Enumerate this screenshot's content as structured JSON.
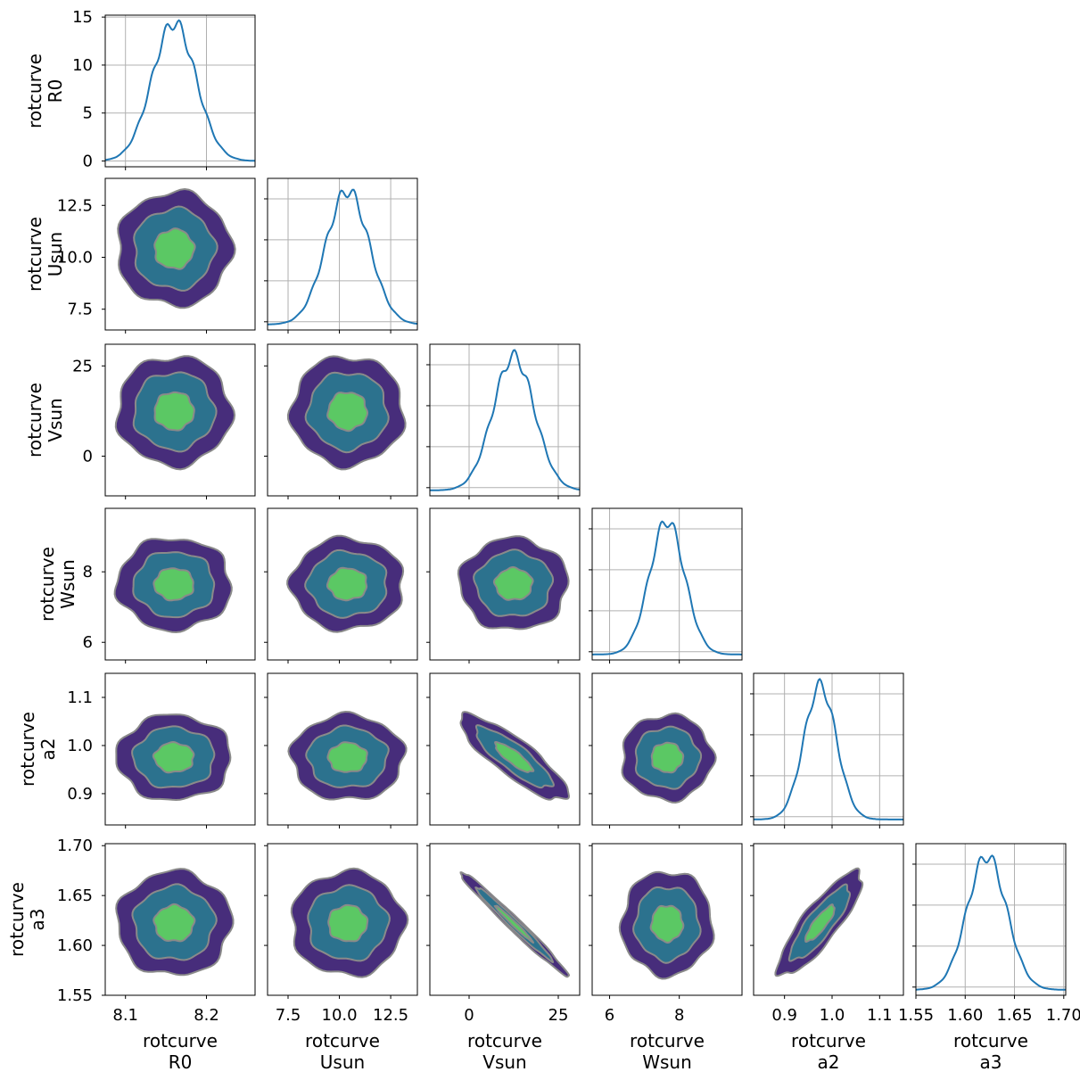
{
  "chart_data": {
    "type": "corner",
    "parameters": [
      {
        "id": "R0",
        "label_lines": [
          "rotcurve",
          "R0"
        ],
        "ticks": [
          8.1,
          8.2
        ],
        "tick_labels": [
          "8.1",
          "8.2"
        ],
        "range": [
          8.075,
          8.26
        ],
        "mean": 8.16,
        "sd": 0.027
      },
      {
        "id": "Usun",
        "label_lines": [
          "rotcurve",
          "Usun"
        ],
        "ticks": [
          7.5,
          10.0,
          12.5
        ],
        "tick_labels": [
          "7.5",
          "10.0",
          "12.5"
        ],
        "range": [
          6.5,
          13.8
        ],
        "mean": 10.4,
        "sd": 1.05
      },
      {
        "id": "Vsun",
        "label_lines": [
          "rotcurve",
          "Vsun"
        ],
        "ticks": [
          0,
          25
        ],
        "tick_labels": [
          "0",
          "25"
        ],
        "range": [
          -11,
          31
        ],
        "mean": 12.5,
        "sd": 5.8
      },
      {
        "id": "Wsun",
        "label_lines": [
          "rotcurve",
          "Wsun"
        ],
        "ticks": [
          6,
          8
        ],
        "tick_labels": [
          "6",
          "8"
        ],
        "range": [
          5.5,
          9.8
        ],
        "mean": 7.65,
        "sd": 0.5
      },
      {
        "id": "a2",
        "label_lines": [
          "rotcurve",
          "a2"
        ],
        "ticks": [
          0.9,
          1.0,
          1.1
        ],
        "tick_labels": [
          "0.9",
          "1.0",
          "1.1"
        ],
        "range": [
          0.835,
          1.15
        ],
        "mean": 0.975,
        "sd": 0.034
      },
      {
        "id": "a3",
        "label_lines": [
          "rotcurve",
          "a3"
        ],
        "ticks": [
          1.55,
          1.6,
          1.65,
          1.7
        ],
        "tick_labels": [
          "1.55",
          "1.60",
          "1.65",
          "1.70"
        ],
        "range": [
          1.55,
          1.702
        ],
        "mean": 1.622,
        "sd": 0.02
      }
    ],
    "diagonal": {
      "plot": "kde",
      "color": "#1f77b4",
      "R0_density_ticks": [
        0,
        5,
        10,
        15
      ],
      "R0_density_tick_labels": [
        "0",
        "5",
        "10",
        "15"
      ],
      "R0_density_ylim": [
        -0.6,
        15.2
      ],
      "R0_density_peak": 14.4,
      "grid": true
    },
    "off_diagonal": {
      "plot": "filled_kde_contours",
      "levels_sigma": [
        1,
        2,
        3
      ],
      "fill_colors": [
        "#5bc864",
        "#2c728e",
        "#472d7b"
      ],
      "line_color": "#8a8a8a",
      "correlations": [
        {
          "x": "Vsun",
          "y": "a2",
          "rho": -0.85
        },
        {
          "x": "Vsun",
          "y": "a3",
          "rho": -0.985
        },
        {
          "x": "a2",
          "y": "a3",
          "rho": 0.85
        }
      ]
    }
  }
}
